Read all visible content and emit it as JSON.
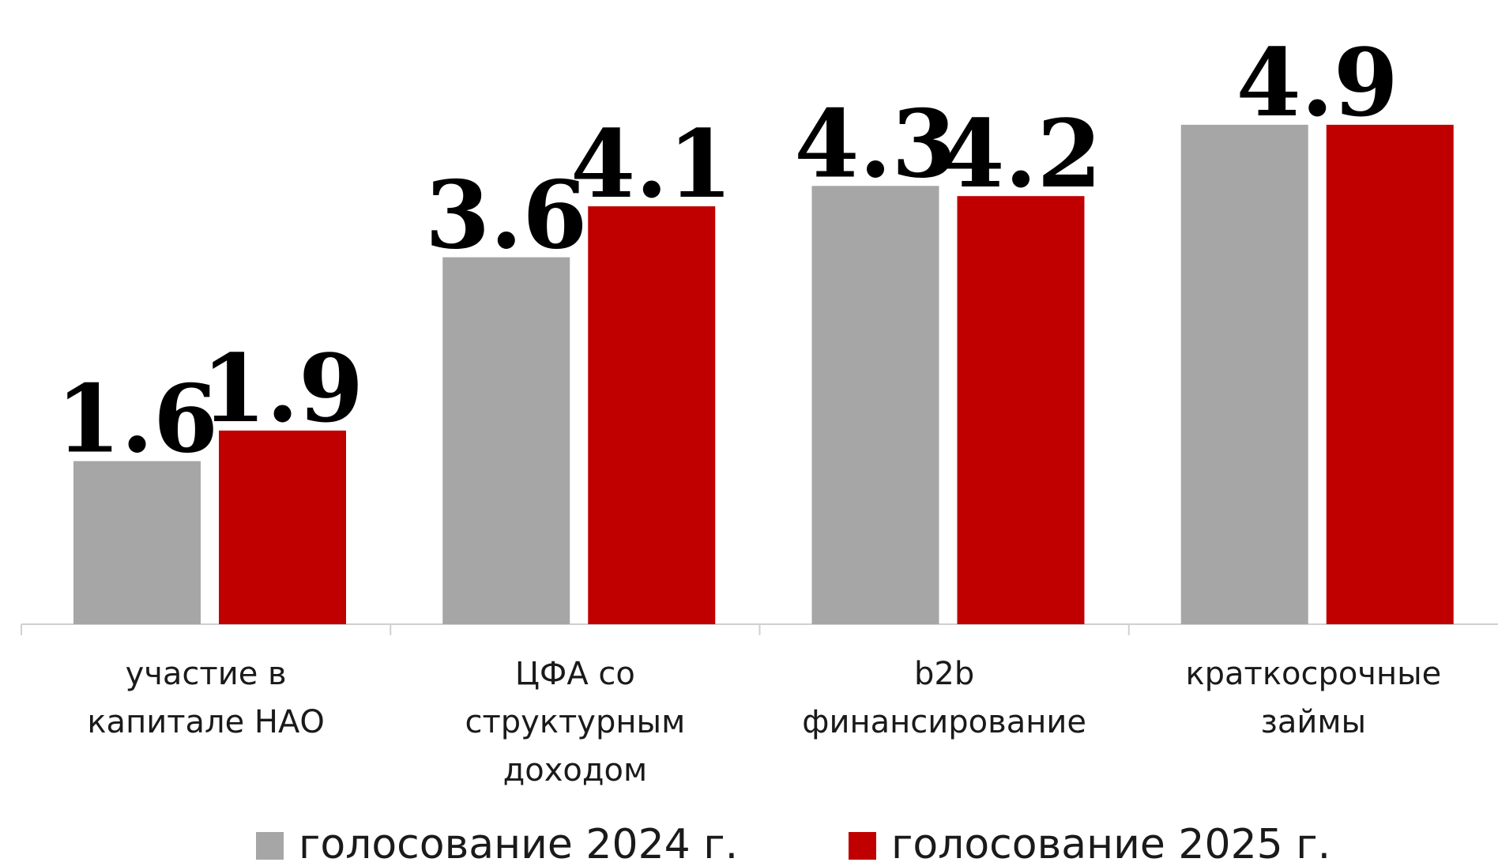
{
  "chart_data": {
    "type": "bar",
    "categories": [
      "участие в капитале НАО",
      "ЦФА со структурным доходом",
      "b2b финансирование",
      "краткосрочные займы"
    ],
    "series": [
      {
        "name": "голосование 2024 г.",
        "color": "#a6a6a6",
        "values": [
          1.6,
          3.6,
          4.3,
          4.9
        ],
        "value_labels": [
          "1.6",
          "3.6",
          "4.3",
          null
        ]
      },
      {
        "name": "голосование 2025 г.",
        "color": "#c00000",
        "values": [
          1.9,
          4.1,
          4.2,
          4.9
        ],
        "value_labels": [
          "1.9",
          "4.1",
          "4.2",
          "4.9"
        ]
      }
    ],
    "ylim": [
      0,
      6
    ],
    "grid": false,
    "legend": "bottom"
  }
}
